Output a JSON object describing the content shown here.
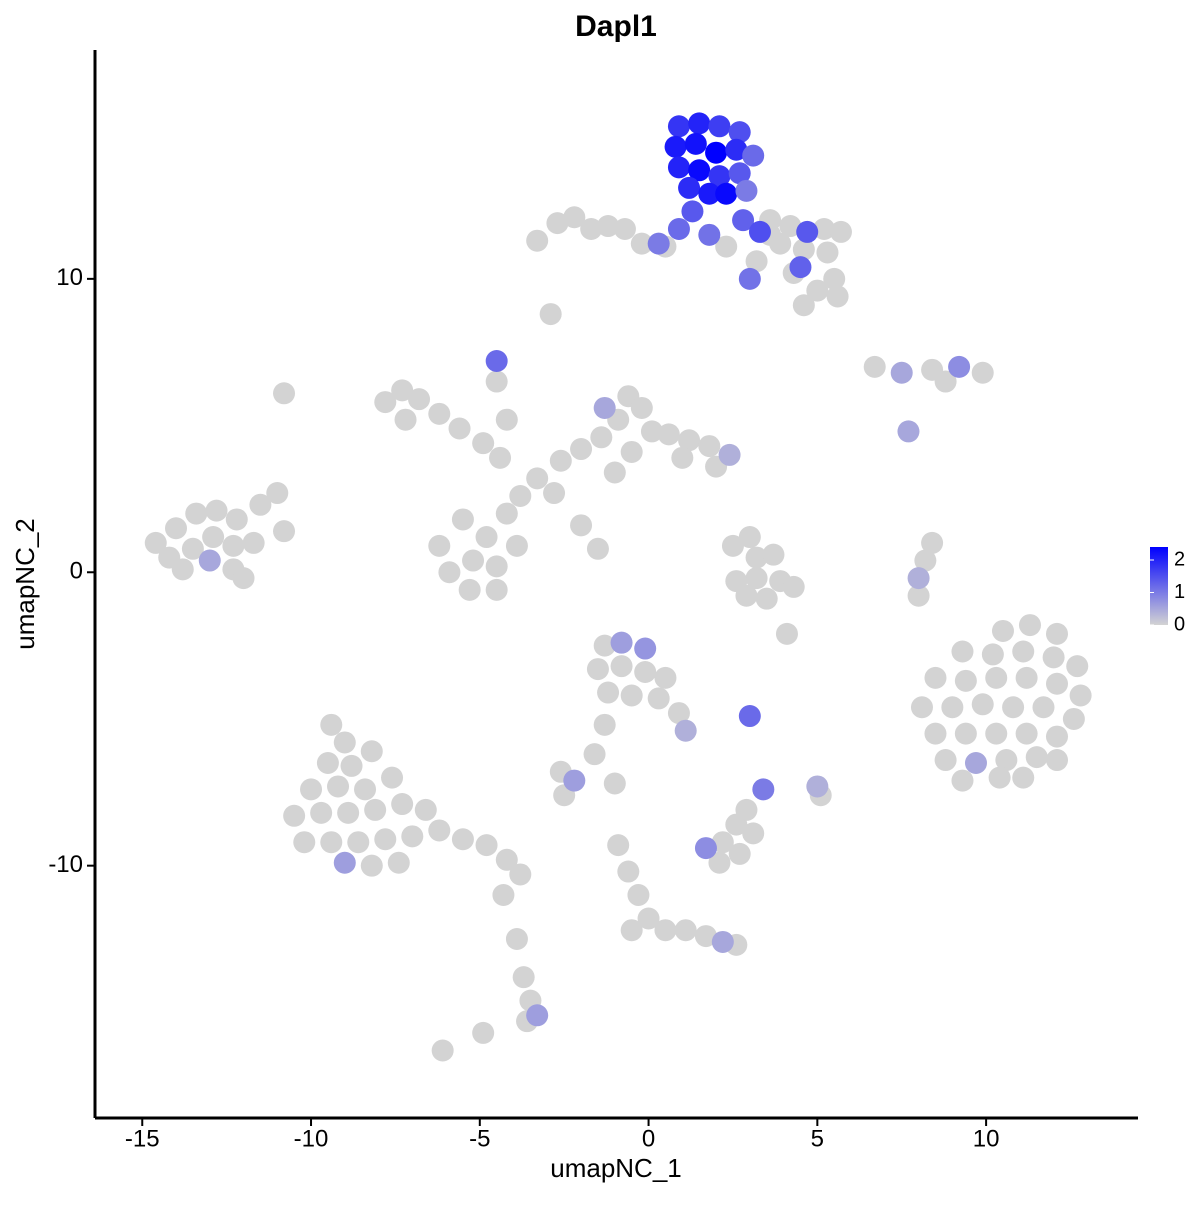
{
  "chart_data": {
    "type": "scatter",
    "title": "Dapl1",
    "xlabel": "umapNC_1",
    "ylabel": "umapNC_2",
    "x": [
      0.9,
      1.5,
      2.1,
      2.7,
      0.8,
      1.4,
      2.0,
      2.6,
      3.1,
      0.9,
      1.5,
      2.1,
      2.7,
      1.2,
      1.8,
      2.3,
      2.9,
      1.3,
      0.9,
      2.8,
      1.8,
      3.3,
      4.7,
      4.5,
      3.0,
      0.3,
      -3.3,
      -2.7,
      -2.2,
      -1.7,
      -1.2,
      -0.7,
      -0.2,
      0.5,
      3.6,
      4.2,
      5.2,
      5.7,
      3.9,
      4.6,
      5.3,
      4.3,
      5.0,
      5.6,
      4.6,
      3.6,
      2.3,
      3.2,
      5.5,
      -2.9,
      6.7,
      7.5,
      8.4,
      9.2,
      9.9,
      8.8,
      7.7,
      -7.8,
      -7.3,
      -6.8,
      -6.2,
      -7.2,
      -5.6,
      -4.9,
      -4.4,
      -4.5,
      -4.2,
      -2.6,
      -2.0,
      -1.4,
      -0.9,
      -0.6,
      -0.2,
      0.1,
      0.6,
      1.2,
      1.8,
      2.4,
      2.0,
      1.0,
      -0.5,
      -1.0,
      -3.3,
      -3.8,
      -2.8,
      -2.0,
      -1.5,
      -6.2,
      -5.5,
      -4.8,
      -4.2,
      -5.9,
      -5.2,
      -4.5,
      -3.9,
      -5.3,
      -4.5,
      -14.6,
      -14.0,
      -13.4,
      -12.8,
      -12.2,
      -11.5,
      -11.0,
      -14.2,
      -13.5,
      -12.9,
      -12.3,
      -11.7,
      -10.8,
      -13.8,
      -13.0,
      -12.3,
      -12.0,
      2.5,
      3.0,
      3.2,
      3.7,
      3.2,
      2.6,
      3.9,
      4.3,
      3.5,
      2.9,
      8.4,
      8.2,
      8.0,
      8.0,
      10.5,
      11.3,
      12.1,
      9.3,
      10.2,
      11.1,
      12.0,
      12.7,
      8.5,
      9.4,
      10.3,
      11.2,
      12.1,
      12.8,
      8.1,
      9.0,
      9.9,
      10.8,
      11.7,
      12.6,
      8.5,
      9.4,
      10.3,
      11.2,
      12.1,
      8.8,
      9.7,
      10.6,
      11.5,
      12.1,
      9.3,
      10.4,
      11.1,
      -9.4,
      -9.0,
      -9.5,
      -8.8,
      -8.2,
      -10.0,
      -9.2,
      -8.4,
      -7.6,
      -10.5,
      -9.7,
      -8.9,
      -8.1,
      -7.3,
      -6.6,
      -10.2,
      -9.4,
      -8.6,
      -7.8,
      -7.0,
      -6.2,
      -5.5,
      -4.8,
      -4.2,
      -9.0,
      -8.2,
      -7.4,
      -3.8,
      -4.3,
      -3.9,
      -3.7,
      -3.5,
      -3.3,
      -3.6,
      -6.1,
      -4.9,
      -1.3,
      -0.8,
      -0.1,
      -1.5,
      -0.8,
      -0.1,
      0.5,
      -1.2,
      -0.5,
      0.3,
      0.9,
      1.1,
      -1.3,
      -1.6,
      -2.6,
      -2.2,
      -2.5,
      -1.0,
      3.0,
      3.4,
      5.0,
      5.1,
      4.1,
      1.7,
      2.2,
      2.6,
      3.1,
      2.7,
      2.1,
      2.9,
      -0.9,
      -0.6,
      -0.3,
      0.0,
      0.5,
      1.1,
      1.7,
      2.2,
      2.6,
      -0.5,
      -10.8,
      -4.5,
      -1.3
    ],
    "y": [
      15.2,
      15.3,
      15.2,
      15.0,
      14.5,
      14.6,
      14.3,
      14.4,
      14.2,
      13.8,
      13.7,
      13.5,
      13.6,
      13.1,
      12.9,
      12.9,
      13.0,
      12.3,
      11.7,
      12.0,
      11.5,
      11.6,
      11.6,
      10.4,
      10.0,
      11.2,
      11.3,
      11.9,
      12.1,
      11.7,
      11.8,
      11.7,
      11.2,
      11.1,
      12.0,
      11.8,
      11.7,
      11.6,
      11.2,
      11.0,
      10.9,
      10.2,
      9.6,
      9.4,
      9.1,
      11.5,
      11.1,
      10.6,
      10.0,
      8.8,
      7.0,
      6.8,
      6.9,
      7.0,
      6.8,
      6.5,
      4.8,
      5.8,
      6.2,
      5.9,
      5.4,
      5.2,
      4.9,
      4.4,
      3.9,
      6.5,
      5.2,
      3.8,
      4.2,
      4.6,
      5.2,
      6.0,
      5.6,
      4.8,
      4.7,
      4.5,
      4.3,
      4.0,
      3.6,
      3.9,
      4.1,
      3.4,
      3.2,
      2.6,
      2.7,
      1.6,
      0.8,
      0.9,
      1.8,
      1.2,
      2.0,
      0.0,
      0.4,
      0.2,
      0.9,
      -0.6,
      -0.6,
      1.0,
      1.5,
      2.0,
      2.1,
      1.8,
      2.3,
      2.7,
      0.5,
      0.8,
      1.2,
      0.9,
      1.0,
      1.4,
      0.1,
      0.4,
      0.1,
      -0.2,
      0.9,
      1.2,
      0.5,
      0.6,
      -0.2,
      -0.3,
      -0.3,
      -0.5,
      -0.9,
      -0.8,
      1.0,
      0.4,
      -0.2,
      -0.8,
      -2.0,
      -1.8,
      -2.1,
      -2.7,
      -2.8,
      -2.7,
      -2.9,
      -3.2,
      -3.6,
      -3.7,
      -3.6,
      -3.6,
      -3.8,
      -4.2,
      -4.6,
      -4.6,
      -4.5,
      -4.6,
      -4.6,
      -5.0,
      -5.5,
      -5.5,
      -5.5,
      -5.5,
      -5.6,
      -6.4,
      -6.5,
      -6.4,
      -6.3,
      -6.4,
      -7.1,
      -7.0,
      -7.0,
      -5.2,
      -5.8,
      -6.5,
      -6.6,
      -6.1,
      -7.4,
      -7.3,
      -7.4,
      -7.0,
      -8.3,
      -8.2,
      -8.2,
      -8.1,
      -7.9,
      -8.1,
      -9.2,
      -9.2,
      -9.2,
      -9.1,
      -9.0,
      -8.8,
      -9.1,
      -9.3,
      -9.8,
      -9.9,
      -10.0,
      -9.9,
      -10.3,
      -11.0,
      -12.5,
      -13.8,
      -14.6,
      -15.1,
      -15.3,
      -16.3,
      -15.7,
      -2.5,
      -2.4,
      -2.6,
      -3.3,
      -3.2,
      -3.4,
      -3.6,
      -4.1,
      -4.2,
      -4.3,
      -4.8,
      -5.4,
      -5.2,
      -6.2,
      -6.8,
      -7.1,
      -7.6,
      -7.2,
      -4.9,
      -7.4,
      -7.3,
      -7.6,
      -2.1,
      -9.4,
      -9.2,
      -8.6,
      -8.9,
      -9.6,
      -9.9,
      -8.1,
      -9.3,
      -10.2,
      -11.0,
      -11.8,
      -12.2,
      -12.2,
      -12.4,
      -12.6,
      -12.7,
      -12.2,
      6.1,
      7.2,
      5.6
    ],
    "values": [
      1.8,
      2.0,
      1.7,
      1.5,
      2.1,
      2.2,
      2.4,
      1.9,
      1.2,
      2.0,
      2.3,
      1.8,
      1.4,
      1.9,
      2.1,
      2.3,
      1.0,
      1.4,
      1.2,
      1.3,
      1.1,
      1.5,
      1.4,
      1.3,
      1.1,
      1.0,
      0,
      0,
      0,
      0,
      0,
      0,
      0,
      0,
      0,
      0,
      0,
      0,
      0,
      0,
      0,
      0,
      0,
      0,
      0,
      0,
      0,
      0,
      0,
      0,
      0,
      0.5,
      0,
      0.8,
      0,
      0,
      0.5,
      0,
      0,
      0,
      0,
      0,
      0,
      0,
      0,
      0,
      0,
      0,
      0,
      0,
      0,
      0,
      0,
      0,
      0,
      0,
      0,
      0.4,
      0,
      0,
      0,
      0,
      0,
      0,
      0,
      0,
      0,
      0,
      0,
      0,
      0,
      0,
      0,
      0,
      0,
      0,
      0,
      0,
      0,
      0,
      0,
      0,
      0,
      0,
      0,
      0,
      0,
      0,
      0,
      0,
      0,
      0.5,
      0,
      0,
      0,
      0,
      0,
      0,
      0,
      0,
      0,
      0,
      0,
      0,
      0,
      0,
      0.4,
      0,
      0,
      0,
      0,
      0,
      0,
      0,
      0,
      0,
      0,
      0,
      0,
      0,
      0,
      0,
      0,
      0,
      0,
      0,
      0,
      0,
      0,
      0,
      0,
      0,
      0,
      0,
      0.5,
      0,
      0,
      0,
      0,
      0,
      0,
      0,
      0,
      0,
      0,
      0,
      0,
      0,
      0,
      0,
      0,
      0,
      0,
      0,
      0,
      0,
      0,
      0,
      0,
      0,
      0,
      0,
      0,
      0,
      0,
      0.6,
      0,
      0,
      0,
      0,
      0,
      0,
      0,
      0.6,
      0,
      0,
      0,
      0,
      0.6,
      0.7,
      0,
      0,
      0,
      0,
      0,
      0,
      0,
      0,
      0.4,
      0,
      0,
      0,
      0.6,
      0,
      0,
      1.2,
      1.0,
      0.4,
      0,
      0,
      0.8,
      0,
      0,
      0,
      0,
      0,
      0,
      0,
      0,
      0,
      0,
      0,
      0,
      0,
      0.5,
      0,
      0,
      0,
      1.2,
      0.5
    ],
    "xlim": [
      -16.4,
      14.5
    ],
    "ylim": [
      -18.6,
      17.8
    ],
    "xticks": [
      -15,
      -10,
      -5,
      0,
      5,
      10
    ],
    "yticks": [
      -10,
      0,
      10
    ],
    "color_range": [
      "#d3d3d3",
      "#0000ff"
    ],
    "clim": [
      0,
      2.4
    ],
    "cticks": [
      0,
      1,
      2
    ]
  }
}
